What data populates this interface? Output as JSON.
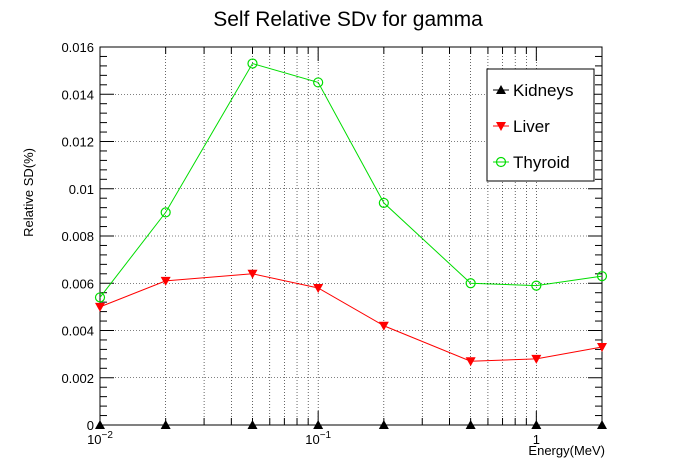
{
  "chart_data": {
    "type": "line",
    "title": "Self Relative SDv for gamma",
    "xlabel": "Energy(MeV)",
    "ylabel": "Relative SD(%)",
    "xscale": "log",
    "xlim": [
      0.01,
      2
    ],
    "ylim": [
      0,
      0.016
    ],
    "grid": true,
    "legend_position": "top-right",
    "x_tick_labels": [
      "10^-2",
      "10^-1",
      "1"
    ],
    "y_tick_labels": [
      "0",
      "0.002",
      "0.004",
      "0.006",
      "0.008",
      "0.01",
      "0.012",
      "0.014",
      "0.016"
    ],
    "x": [
      0.01,
      0.02,
      0.05,
      0.1,
      0.2,
      0.5,
      1,
      2
    ],
    "series": [
      {
        "name": "Kidneys",
        "color": "#000000",
        "marker": "triangle-up",
        "values": [
          0,
          0,
          0,
          0,
          0,
          0,
          0,
          0
        ]
      },
      {
        "name": "Liver",
        "color": "#ff0000",
        "marker": "triangle-down",
        "values": [
          0.005,
          0.0061,
          0.0064,
          0.0058,
          0.0042,
          0.0027,
          0.0028,
          0.0033
        ]
      },
      {
        "name": "Thyroid",
        "color": "#00dd00",
        "marker": "circle-open",
        "values": [
          0.0054,
          0.009,
          0.0153,
          0.0145,
          0.0094,
          0.006,
          0.0059,
          0.0063
        ]
      }
    ]
  }
}
